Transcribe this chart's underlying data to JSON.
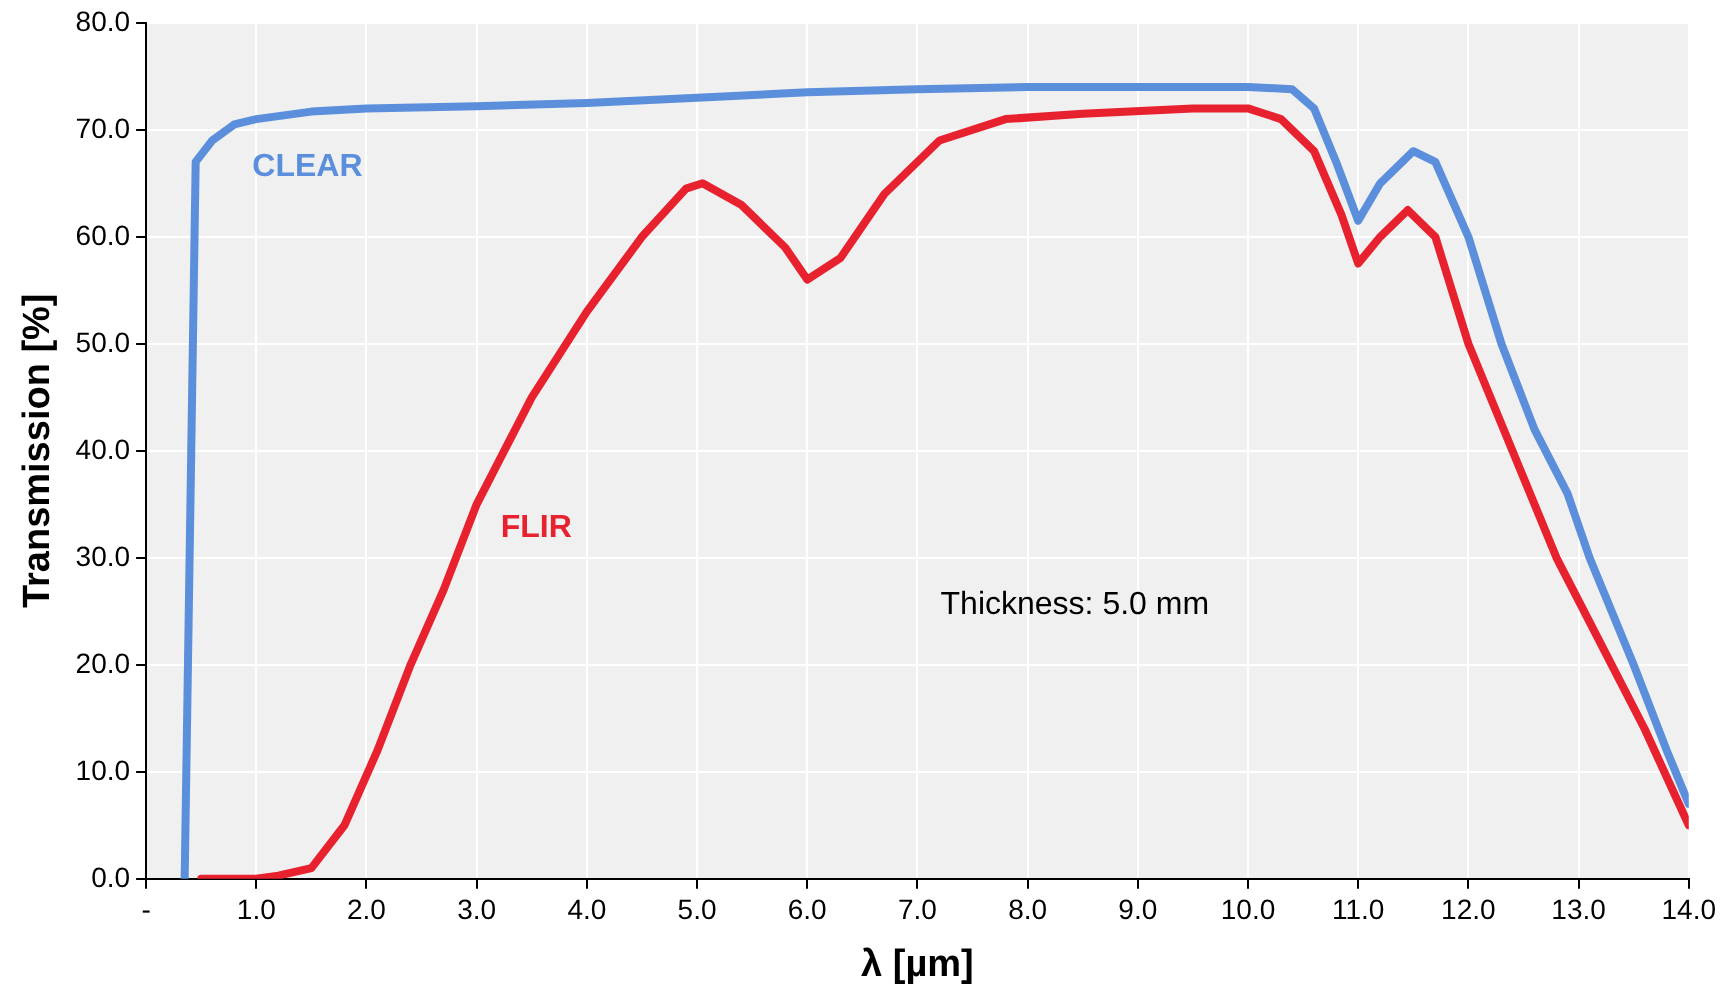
{
  "chart_data": {
    "type": "line",
    "xlabel": "λ [µm]",
    "ylabel": "Transmission [%]",
    "xlim": [
      0,
      14
    ],
    "ylim": [
      0,
      80
    ],
    "xticks": [
      {
        "value": 0,
        "label": "-"
      },
      {
        "value": 1,
        "label": "1.0"
      },
      {
        "value": 2,
        "label": "2.0"
      },
      {
        "value": 3,
        "label": "3.0"
      },
      {
        "value": 4,
        "label": "4.0"
      },
      {
        "value": 5,
        "label": "5.0"
      },
      {
        "value": 6,
        "label": "6.0"
      },
      {
        "value": 7,
        "label": "7.0"
      },
      {
        "value": 8,
        "label": "8.0"
      },
      {
        "value": 9,
        "label": "9.0"
      },
      {
        "value": 10,
        "label": "10.0"
      },
      {
        "value": 11,
        "label": "11.0"
      },
      {
        "value": 12,
        "label": "12.0"
      },
      {
        "value": 13,
        "label": "13.0"
      },
      {
        "value": 14,
        "label": "14.0"
      }
    ],
    "yticks": [
      {
        "value": 0,
        "label": "0.0"
      },
      {
        "value": 10,
        "label": "10.0"
      },
      {
        "value": 20,
        "label": "20.0"
      },
      {
        "value": 30,
        "label": "30.0"
      },
      {
        "value": 40,
        "label": "40.0"
      },
      {
        "value": 50,
        "label": "50.0"
      },
      {
        "value": 60,
        "label": "60.0"
      },
      {
        "value": 70,
        "label": "70.0"
      },
      {
        "value": 80,
        "label": "80.0"
      }
    ],
    "grid": true,
    "legend": false,
    "marker": "none",
    "line_style": "solid",
    "annotations": [
      "Thickness: 5.0 mm"
    ],
    "series": [
      {
        "name": "CLEAR",
        "color": "#5b8fdc",
        "x": [
          0.35,
          0.45,
          0.6,
          0.8,
          1.0,
          1.5,
          2.0,
          3.0,
          4.0,
          5.0,
          6.0,
          7.0,
          8.0,
          9.0,
          10.0,
          10.4,
          10.6,
          10.8,
          11.0,
          11.2,
          11.5,
          11.7,
          12.0,
          12.3,
          12.6,
          12.9,
          13.1,
          13.5,
          13.8,
          14.0
        ],
        "values": [
          0,
          67,
          69,
          70.5,
          71,
          71.7,
          72,
          72.2,
          72.5,
          73,
          73.5,
          73.8,
          74,
          74,
          74,
          73.8,
          72,
          67,
          61.5,
          65,
          68,
          67,
          60,
          50,
          42,
          36,
          30,
          20,
          12,
          7
        ]
      },
      {
        "name": "FLIR",
        "color": "#e8212e",
        "x": [
          0.5,
          1.0,
          1.2,
          1.5,
          1.8,
          2.1,
          2.4,
          2.7,
          3.0,
          3.5,
          4.0,
          4.5,
          4.9,
          5.05,
          5.4,
          5.8,
          6.0,
          6.3,
          6.7,
          7.2,
          7.8,
          8.5,
          9.5,
          10.0,
          10.3,
          10.6,
          10.85,
          11.0,
          11.2,
          11.45,
          11.7,
          12.0,
          12.4,
          12.8,
          13.2,
          13.6,
          14.0
        ],
        "values": [
          0,
          0,
          0.3,
          1,
          5,
          12,
          20,
          27,
          35,
          45,
          53,
          60,
          64.5,
          65,
          63,
          59,
          56,
          58,
          64,
          69,
          71,
          71.5,
          72,
          72,
          71,
          68,
          62,
          57.5,
          60,
          62.5,
          60,
          50,
          40,
          30,
          22,
          14,
          5
        ]
      }
    ]
  }
}
